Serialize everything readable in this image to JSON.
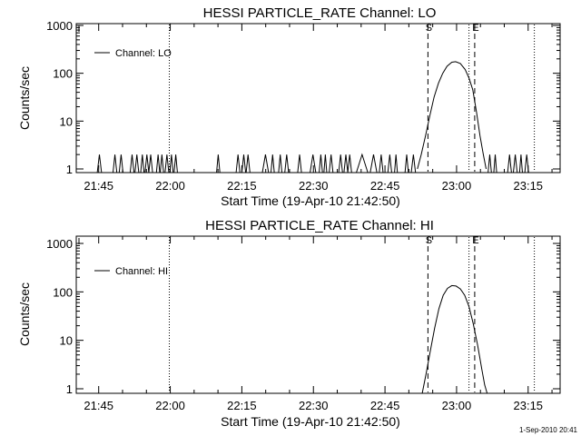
{
  "timestamp": "1-Sep-2010 20:41",
  "chart_data": [
    {
      "type": "line",
      "title": "HESSI PARTICLE_RATE Channel: LO",
      "xlabel": "Start Time (19-Apr-10 21:42:50)",
      "ylabel": "Counts/sec",
      "y_scale": "log",
      "ylim": [
        1,
        1000
      ],
      "y_ticks": [
        {
          "value": 1,
          "label": "1"
        },
        {
          "value": 10,
          "label": "10"
        },
        {
          "value": 100,
          "label": "100"
        },
        {
          "value": 1000,
          "label": "1000"
        }
      ],
      "x_ticks": [
        "21:45",
        "22:00",
        "22:15",
        "22:30",
        "22:45",
        "23:00",
        "23:15"
      ],
      "x_tick_minutes": [
        0,
        15,
        30,
        45,
        60,
        75,
        90
      ],
      "xlim_minutes": [
        -4.7,
        96.7
      ],
      "legend": {
        "label": "Channel: LO",
        "position": "top-left"
      },
      "vlines": [
        {
          "minute": 14.8,
          "style": "dotted",
          "label": ""
        },
        {
          "minute": 69.0,
          "style": "dashed",
          "label": "S"
        },
        {
          "minute": 77.6,
          "style": "dotted",
          "label": ""
        },
        {
          "minute": 78.8,
          "style": "dashed",
          "label": "E"
        },
        {
          "minute": 91.3,
          "style": "dotted",
          "label": ""
        }
      ],
      "spikes": [
        {
          "from": -0.3,
          "to": 0.6
        },
        {
          "from": 3.0,
          "to": 3.8
        },
        {
          "from": 4.3,
          "to": 5.1
        },
        {
          "from": 6.6,
          "to": 7.4
        },
        {
          "from": 7.6,
          "to": 8.4
        },
        {
          "from": 8.8,
          "to": 9.5
        },
        {
          "from": 9.7,
          "to": 10.5
        },
        {
          "from": 10.5,
          "to": 11.3
        },
        {
          "from": 12.1,
          "to": 12.8
        },
        {
          "from": 12.9,
          "to": 13.6
        },
        {
          "from": 13.9,
          "to": 14.7
        },
        {
          "from": 14.9,
          "to": 15.6
        },
        {
          "from": 15.8,
          "to": 16.5
        },
        {
          "from": 24.7,
          "to": 25.4
        },
        {
          "from": 28.8,
          "to": 29.6
        },
        {
          "from": 30.0,
          "to": 30.8
        },
        {
          "from": 30.9,
          "to": 31.7
        },
        {
          "from": 34.3,
          "to": 35.6
        },
        {
          "from": 36.1,
          "to": 36.8
        },
        {
          "from": 37.7,
          "to": 38.4
        },
        {
          "from": 39.0,
          "to": 39.8
        },
        {
          "from": 41.7,
          "to": 42.5
        },
        {
          "from": 44.3,
          "to": 45.5
        },
        {
          "from": 46.2,
          "to": 46.9
        },
        {
          "from": 47.2,
          "to": 47.8
        },
        {
          "from": 48.3,
          "to": 49.1
        },
        {
          "from": 50.3,
          "to": 51.1
        },
        {
          "from": 51.4,
          "to": 52.2
        },
        {
          "from": 52.2,
          "to": 53.0
        },
        {
          "from": 54.0,
          "to": 56.4
        },
        {
          "from": 56.9,
          "to": 58.3
        },
        {
          "from": 58.8,
          "to": 59.6
        },
        {
          "from": 60.6,
          "to": 61.4
        },
        {
          "from": 62.0,
          "to": 62.6
        },
        {
          "from": 64.2,
          "to": 64.9
        },
        {
          "from": 65.5,
          "to": 66.4
        },
        {
          "from": 81.6,
          "to": 82.3
        },
        {
          "from": 82.8,
          "to": 83.4
        },
        {
          "from": 85.7,
          "to": 86.5
        },
        {
          "from": 86.9,
          "to": 87.7
        },
        {
          "from": 88.2,
          "to": 88.8
        },
        {
          "from": 89.3,
          "to": 90.1
        }
      ],
      "peak": {
        "start_minute": 66.8,
        "end_minute": 81.2,
        "points": [
          [
            66.8,
            1
          ],
          [
            67.6,
            2
          ],
          [
            68.5,
            5
          ],
          [
            69.4,
            13
          ],
          [
            70.3,
            32
          ],
          [
            71.2,
            62
          ],
          [
            72.1,
            100
          ],
          [
            73.0,
            140
          ],
          [
            74.0,
            170
          ],
          [
            74.8,
            175
          ],
          [
            75.8,
            160
          ],
          [
            76.8,
            120
          ],
          [
            77.6,
            80
          ],
          [
            78.4,
            45
          ],
          [
            79.2,
            15
          ],
          [
            79.9,
            5
          ],
          [
            80.6,
            2
          ],
          [
            81.2,
            1
          ]
        ]
      }
    },
    {
      "type": "line",
      "title": "HESSI PARTICLE_RATE Channel: HI",
      "xlabel": "Start Time (19-Apr-10 21:42:50)",
      "ylabel": "Counts/sec",
      "y_scale": "log",
      "ylim": [
        1,
        1000
      ],
      "y_ticks": [
        {
          "value": 1,
          "label": "1"
        },
        {
          "value": 10,
          "label": "10"
        },
        {
          "value": 100,
          "label": "100"
        },
        {
          "value": 1000,
          "label": "1000"
        }
      ],
      "x_ticks": [
        "21:45",
        "22:00",
        "22:15",
        "22:30",
        "22:45",
        "23:00",
        "23:15"
      ],
      "x_tick_minutes": [
        0,
        15,
        30,
        45,
        60,
        75,
        90
      ],
      "xlim_minutes": [
        -4.7,
        96.7
      ],
      "legend": {
        "label": "Channel: HI",
        "position": "top-left"
      },
      "vlines": [
        {
          "minute": 14.8,
          "style": "dotted",
          "label": ""
        },
        {
          "minute": 69.0,
          "style": "dashed",
          "label": "S"
        },
        {
          "minute": 77.6,
          "style": "dotted",
          "label": ""
        },
        {
          "minute": 78.8,
          "style": "dashed",
          "label": "E"
        },
        {
          "minute": 91.3,
          "style": "dotted",
          "label": ""
        }
      ],
      "spikes": [],
      "peak": {
        "start_minute": 67.8,
        "end_minute": 81.4,
        "points": [
          [
            67.8,
            0.8
          ],
          [
            68.6,
            2
          ],
          [
            69.5,
            6
          ],
          [
            70.4,
            18
          ],
          [
            71.3,
            45
          ],
          [
            72.2,
            85
          ],
          [
            73.1,
            118
          ],
          [
            74.0,
            135
          ],
          [
            74.9,
            132
          ],
          [
            75.8,
            115
          ],
          [
            76.7,
            85
          ],
          [
            77.6,
            50
          ],
          [
            78.5,
            22
          ],
          [
            79.4,
            8
          ],
          [
            80.3,
            2.5
          ],
          [
            80.9,
            1.2
          ],
          [
            81.4,
            0.8
          ]
        ]
      }
    }
  ]
}
